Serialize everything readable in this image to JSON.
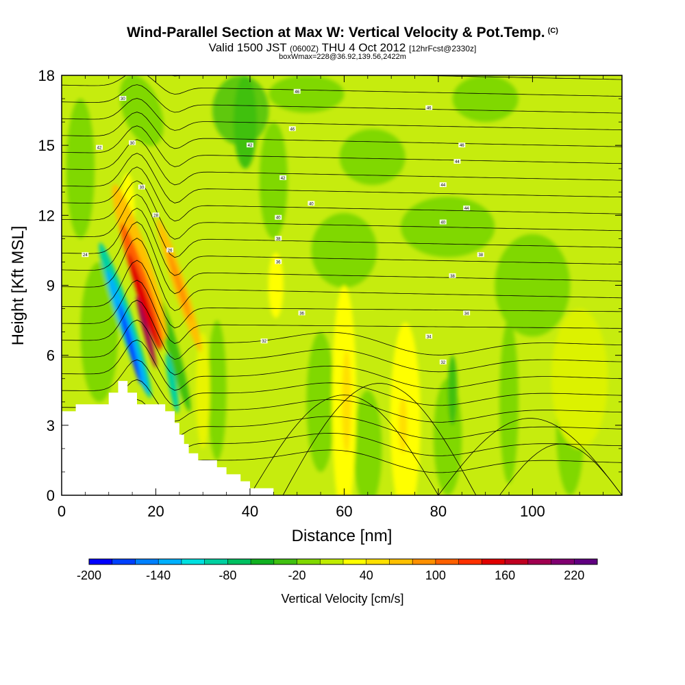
{
  "header": {
    "title": "Wind-Parallel Section at Max W: Vertical Velocity & Pot.Temp.",
    "title_mark": "(C)",
    "subtitle_valid": "Valid 1500 JST",
    "subtitle_z": "(0600Z)",
    "subtitle_date": "THU 4 Oct 2012",
    "subtitle_fcst": "[12hrFcst@2330z]",
    "subtitle3": "boxWmax=228@36.92,139.56,2422m"
  },
  "chart_data": {
    "type": "heatmap",
    "xlabel": "Distance [nm]",
    "ylabel": "Height [Kft MSL]",
    "xlim": [
      0,
      119
    ],
    "ylim": [
      0,
      18
    ],
    "x_ticks": [
      0,
      20,
      40,
      60,
      80,
      100
    ],
    "y_ticks": [
      0,
      3,
      6,
      9,
      12,
      15,
      18
    ],
    "colorbar": {
      "title": "Vertical Velocity [cm/s]",
      "levels": [
        -200,
        -180,
        -160,
        -140,
        -120,
        -100,
        -80,
        -60,
        -40,
        -20,
        0,
        20,
        40,
        60,
        80,
        100,
        120,
        140,
        160,
        180,
        200,
        220,
        240
      ],
      "tick_labels": [
        -200,
        -140,
        -80,
        -20,
        40,
        100,
        160,
        220
      ],
      "colors": [
        "#0000ff",
        "#0040ff",
        "#0080ff",
        "#00b0ff",
        "#00e0e0",
        "#00d0a0",
        "#00c060",
        "#10b020",
        "#40c010",
        "#80d800",
        "#c0ec00",
        "#ffff00",
        "#ffe000",
        "#ffc000",
        "#ff9000",
        "#ff6000",
        "#ff3000",
        "#e00000",
        "#c00020",
        "#a00050",
        "#800070",
        "#600080"
      ]
    },
    "theta_contour_labels": [
      "46",
      "46",
      "46",
      "46",
      "44",
      "44",
      "44",
      "42",
      "42",
      "42",
      "40",
      "40",
      "40",
      "38",
      "38",
      "38",
      "36",
      "36",
      "34",
      "34",
      "32",
      "32",
      "30",
      "30",
      "30",
      "28",
      "26",
      "24"
    ],
    "terrain_kft": [
      [
        0,
        3.6
      ],
      [
        3,
        3.6
      ],
      [
        3,
        3.9
      ],
      [
        10,
        3.9
      ],
      [
        10,
        4.4
      ],
      [
        12,
        4.4
      ],
      [
        12,
        4.9
      ],
      [
        14,
        4.9
      ],
      [
        14,
        4.4
      ],
      [
        16,
        4.4
      ],
      [
        16,
        3.9
      ],
      [
        22,
        3.9
      ],
      [
        22,
        3.6
      ],
      [
        24,
        3.6
      ],
      [
        24,
        3.1
      ],
      [
        25,
        3.1
      ],
      [
        25,
        2.6
      ],
      [
        26,
        2.6
      ],
      [
        26,
        2.2
      ],
      [
        27,
        2.2
      ],
      [
        27,
        1.8
      ],
      [
        29,
        1.8
      ],
      [
        29,
        1.5
      ],
      [
        33,
        1.5
      ],
      [
        33,
        1.2
      ],
      [
        35,
        1.2
      ],
      [
        35,
        0.9
      ],
      [
        38,
        0.9
      ],
      [
        38,
        0.6
      ],
      [
        40,
        0.6
      ],
      [
        40,
        0.3
      ],
      [
        45,
        0.3
      ],
      [
        45,
        0
      ],
      [
        119,
        0
      ]
    ]
  }
}
